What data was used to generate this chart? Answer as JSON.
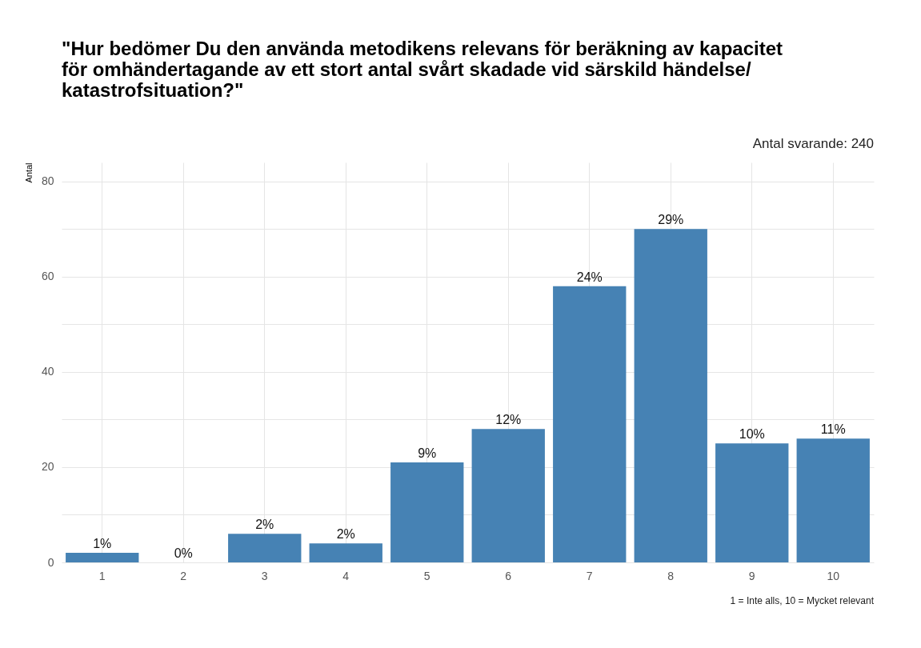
{
  "chart_data": {
    "type": "bar",
    "title": "\"Hur bedömer Du den använda metodikens relevans för beräkning av kapacitet\nför omhändertagande av ett stort antal svårt skadade vid särskild händelse/\nkatastrofsituation?\"",
    "ylabel": "Antal",
    "categories": [
      "1",
      "2",
      "3",
      "4",
      "5",
      "6",
      "7",
      "8",
      "9",
      "10"
    ],
    "values": [
      2,
      0,
      6,
      4,
      21,
      28,
      58,
      70,
      25,
      26
    ],
    "color": "#4682b4",
    "ylim": [
      0,
      84
    ],
    "yticks": [
      0,
      {
        "value": 10,
        "label": null
      },
      20,
      {
        "value": 30,
        "label": null
      },
      40,
      {
        "value": 50,
        "label": null
      },
      60,
      {
        "value": 70,
        "label": null
      },
      80
    ],
    "grid": true,
    "annotations": [
      "Antal svarande:  240",
      "1 = Inte alls, 10 = Mycket relevant",
      {
        "text": "1%",
        "x": "1",
        "y": 2
      },
      {
        "text": "0%",
        "x": "2",
        "y": 0
      },
      {
        "text": "2%",
        "x": "3",
        "y": 6
      },
      {
        "text": "2%",
        "x": "4",
        "y": 4
      },
      {
        "text": "9%",
        "x": "5",
        "y": 21
      },
      {
        "text": "12%",
        "x": "6",
        "y": 28
      },
      {
        "text": "24%",
        "x": "7",
        "y": 58
      },
      {
        "text": "29%",
        "x": "8",
        "y": 70
      },
      {
        "text": "10%",
        "x": "9",
        "y": 25
      },
      {
        "text": "11%",
        "x": "10",
        "y": 26
      }
    ]
  }
}
